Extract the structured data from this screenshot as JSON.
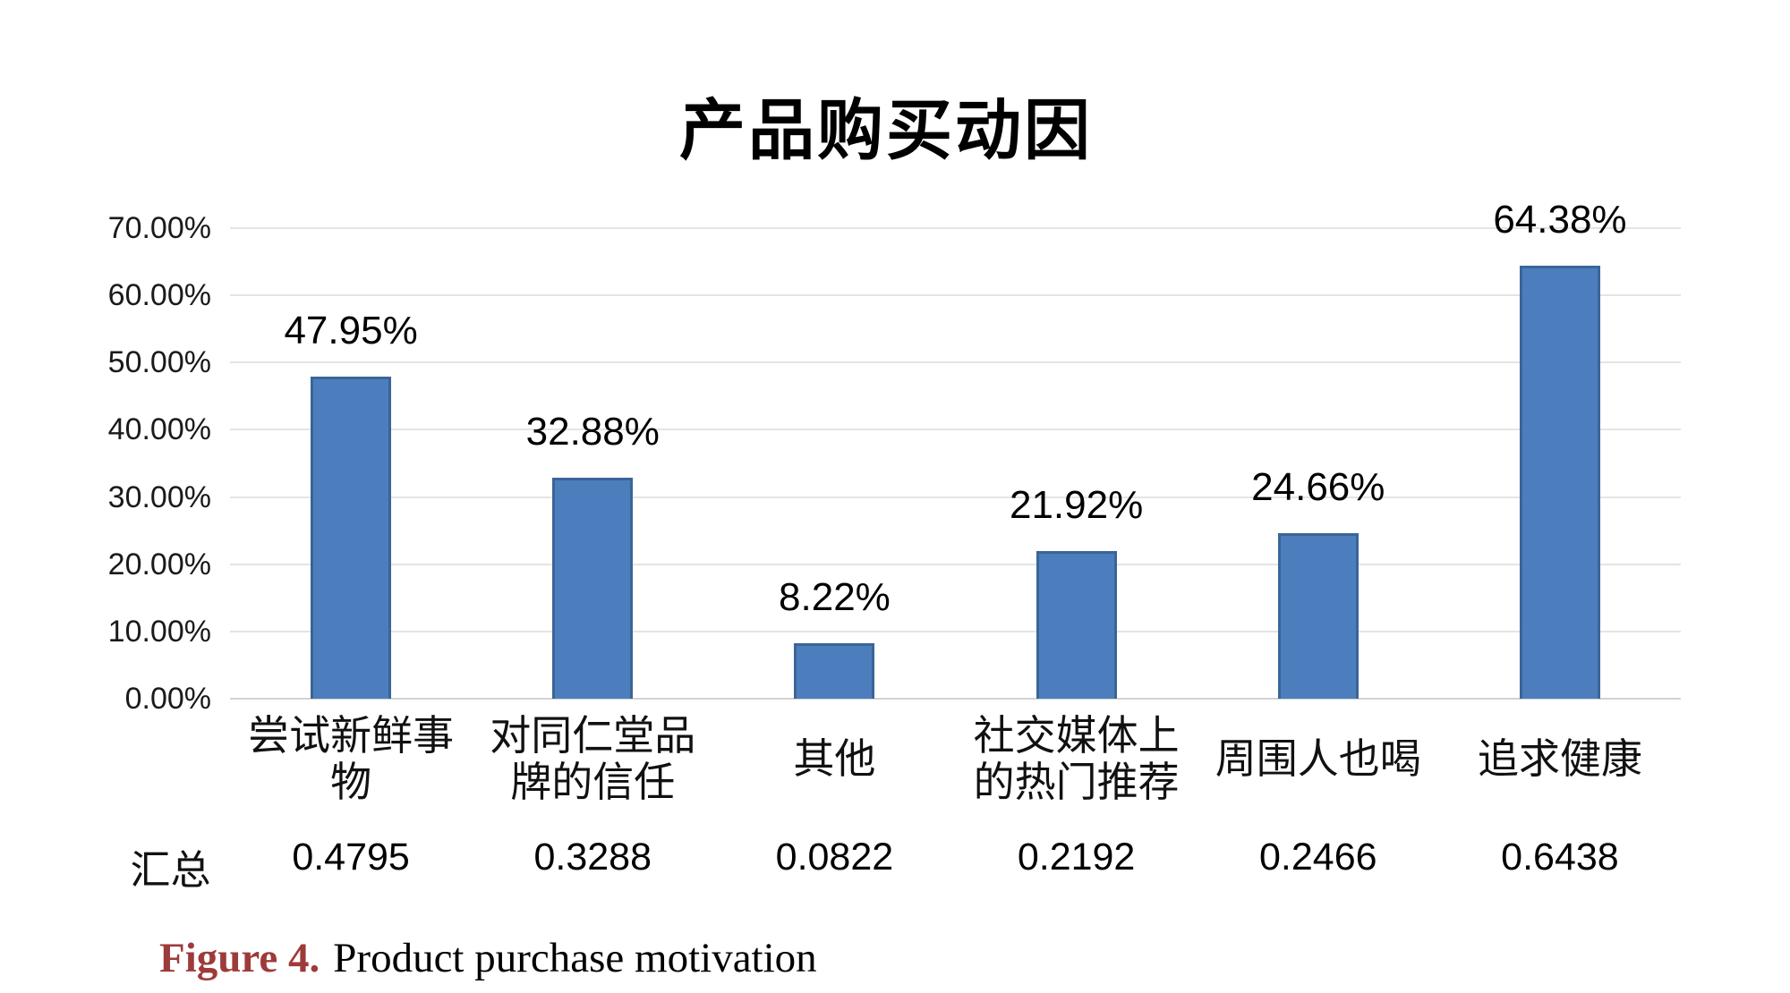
{
  "chart_data": {
    "type": "bar",
    "title": "产品购买动因",
    "categories": [
      "尝试新鲜事物",
      "对同仁堂品牌的信任",
      "其他",
      "社交媒体上的热门推荐",
      "周围人也喝",
      "追求健康"
    ],
    "values": [
      47.95,
      32.88,
      8.22,
      21.92,
      24.66,
      64.38
    ],
    "data_labels": [
      "47.95%",
      "32.88%",
      "8.22%",
      "21.92%",
      "24.66%",
      "64.38%"
    ],
    "y_ticks": [
      "70.00%",
      "60.00%",
      "50.00%",
      "40.00%",
      "30.00%",
      "20.00%",
      "10.00%",
      "0.00%"
    ],
    "ylim": [
      0,
      70
    ],
    "xlabel": "",
    "ylabel": "",
    "grid": true,
    "legend": "none",
    "bar_color": "#4C7EBD",
    "bar_border_color": "#3A6598",
    "gridline_color": "#E4E4E4",
    "axisline_color": "#D2D2D2"
  },
  "summary_row": {
    "label": "汇总",
    "values": [
      "0.4795",
      "0.3288",
      "0.0822",
      "0.2192",
      "0.2466",
      "0.6438"
    ]
  },
  "caption": {
    "label": "Figure 4.",
    "text": "Product purchase motivation",
    "label_color": "#9E3A3A"
  }
}
